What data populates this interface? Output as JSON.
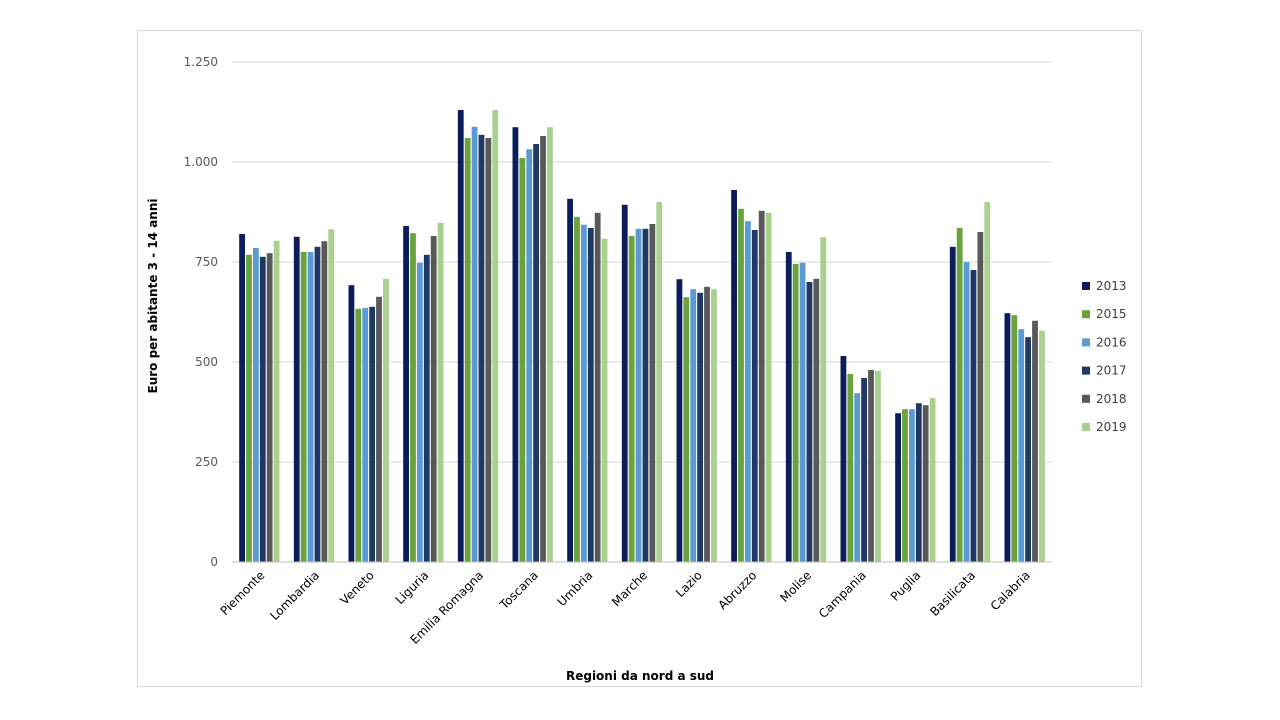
{
  "chart_data": {
    "type": "bar",
    "title": "",
    "xlabel": "Regioni da nord a sud",
    "ylabel": "Euro per abitante 3 - 14 anni",
    "ylim": [
      0,
      1250
    ],
    "yticks": [
      0,
      250,
      500,
      750,
      1000,
      1250
    ],
    "ytick_labels": [
      "0",
      "250",
      "500",
      "750",
      "1.000",
      "1.250"
    ],
    "grid": true,
    "legend_position": "right",
    "categories": [
      "Piemonte",
      "Lombardia",
      "Veneto",
      "Liguria",
      "Emilia Romagna",
      "Toscana",
      "Umbria",
      "Marche",
      "Lazio",
      "Abruzzo",
      "Molise",
      "Campania",
      "Puglia",
      "Basilicata",
      "Calabria"
    ],
    "series": [
      {
        "name": "2013",
        "color": "#0b1e5b",
        "values": [
          820,
          813,
          692,
          840,
          1130,
          1087,
          908,
          893,
          707,
          930,
          775,
          515,
          372,
          788,
          622
        ]
      },
      {
        "name": "2015",
        "color": "#6aa33c",
        "values": [
          768,
          775,
          633,
          822,
          1060,
          1010,
          863,
          815,
          662,
          883,
          745,
          470,
          382,
          835,
          617
        ]
      },
      {
        "name": "2016",
        "color": "#5b9bd5",
        "values": [
          785,
          775,
          635,
          748,
          1088,
          1032,
          843,
          833,
          682,
          852,
          748,
          422,
          382,
          750,
          582
        ]
      },
      {
        "name": "2017",
        "color": "#203864",
        "values": [
          763,
          788,
          638,
          768,
          1068,
          1045,
          835,
          833,
          673,
          830,
          700,
          460,
          397,
          730,
          562
        ]
      },
      {
        "name": "2018",
        "color": "#595959",
        "values": [
          772,
          802,
          663,
          815,
          1060,
          1065,
          873,
          845,
          688,
          878,
          708,
          480,
          392,
          825,
          603
        ]
      },
      {
        "name": "2019",
        "color": "#a9d18e",
        "values": [
          803,
          832,
          708,
          848,
          1130,
          1087,
          808,
          900,
          682,
          873,
          812,
          478,
          410,
          900,
          578
        ]
      }
    ]
  }
}
